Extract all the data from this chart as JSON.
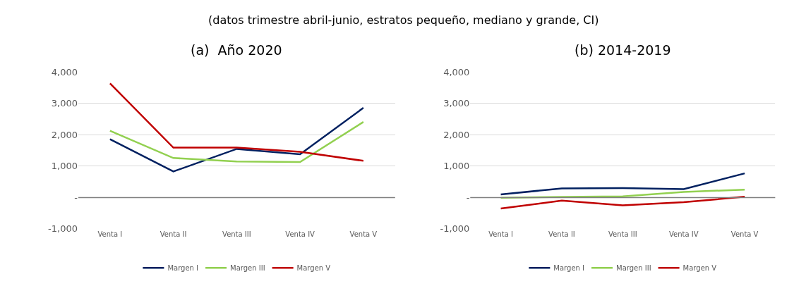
{
  "chart_data": [
    {
      "type": "line",
      "title": "(a)  Año 2020",
      "annotations": [
        "(datos trimestre abril-junio, estratos pequeño, mediano y grande, CI)"
      ],
      "categories": [
        "Venta I",
        "Venta II",
        "Venta III",
        "Venta IV",
        "Venta V"
      ],
      "series": [
        {
          "name": "Margen I",
          "color": "#002060",
          "values": [
            1860,
            830,
            1550,
            1380,
            2860
          ]
        },
        {
          "name": "Margen III",
          "color": "#92d050",
          "values": [
            2130,
            1260,
            1150,
            1130,
            2410
          ]
        },
        {
          "name": "Margen V",
          "color": "#c00000",
          "values": [
            3640,
            1590,
            1590,
            1460,
            1170
          ]
        }
      ],
      "ylim": [
        -1000,
        4000
      ],
      "yticks": [
        {
          "value": -1000,
          "label": "-1,000"
        },
        {
          "value": 0,
          "label": "-"
        },
        {
          "value": 1000,
          "label": "1,000"
        },
        {
          "value": 2000,
          "label": "2,000"
        },
        {
          "value": 3000,
          "label": "3,000"
        },
        {
          "value": 4000,
          "label": "4,000"
        }
      ],
      "ref_lines": [
        {
          "axis": "y",
          "value": 0,
          "color": "#7f7f7f"
        }
      ],
      "grid": "y",
      "legend": "bottom",
      "marker": "none",
      "line_style": "solid"
    },
    {
      "type": "line",
      "title": "(b) 2014-2019",
      "categories": [
        "Venta I",
        "Venta II",
        "Venta III",
        "Venta IV",
        "Venta V"
      ],
      "series": [
        {
          "name": "Margen I",
          "color": "#002060",
          "values": [
            100,
            290,
            300,
            270,
            770
          ]
        },
        {
          "name": "Margen III",
          "color": "#92d050",
          "values": [
            -10,
            20,
            40,
            180,
            250
          ]
        },
        {
          "name": "Margen V",
          "color": "#c00000",
          "values": [
            -350,
            -100,
            -250,
            -150,
            25
          ]
        }
      ],
      "ylim": [
        -1000,
        4000
      ],
      "yticks": [
        {
          "value": -1000,
          "label": "-1,000"
        },
        {
          "value": 0,
          "label": "-"
        },
        {
          "value": 1000,
          "label": "1,000"
        },
        {
          "value": 2000,
          "label": "2,000"
        },
        {
          "value": 3000,
          "label": "3,000"
        },
        {
          "value": 4000,
          "label": "4,000"
        }
      ],
      "ref_lines": [
        {
          "axis": "y",
          "value": 0,
          "color": "#7f7f7f"
        }
      ],
      "grid": "y",
      "legend": "bottom",
      "marker": "none",
      "line_style": "solid"
    }
  ]
}
